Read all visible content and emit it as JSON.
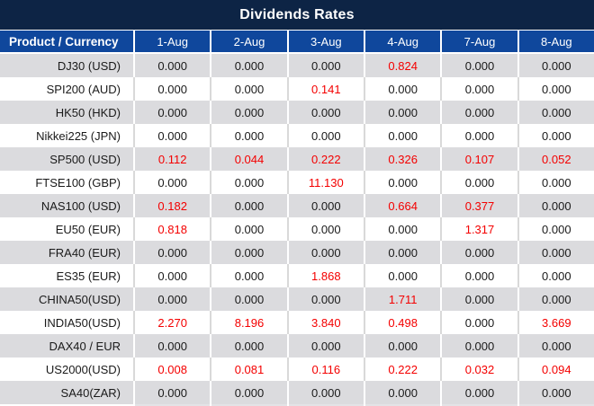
{
  "title": "Dividends Rates",
  "colors": {
    "title_bar": "#0d2445",
    "header_bg": "#0f479c",
    "alt_row_bg": "#dbdbde",
    "nonzero_value": "#f40000",
    "zero_value": "#1a1a1a"
  },
  "table": {
    "columns": [
      "Product / Currency",
      "1-Aug",
      "2-Aug",
      "3-Aug",
      "4-Aug",
      "7-Aug",
      "8-Aug"
    ],
    "rows": [
      {
        "product": "DJ30 (USD)",
        "values": [
          "0.000",
          "0.000",
          "0.000",
          "0.824",
          "0.000",
          "0.000"
        ]
      },
      {
        "product": "SPI200 (AUD)",
        "values": [
          "0.000",
          "0.000",
          "0.141",
          "0.000",
          "0.000",
          "0.000"
        ]
      },
      {
        "product": "HK50 (HKD)",
        "values": [
          "0.000",
          "0.000",
          "0.000",
          "0.000",
          "0.000",
          "0.000"
        ]
      },
      {
        "product": "Nikkei225 (JPN)",
        "values": [
          "0.000",
          "0.000",
          "0.000",
          "0.000",
          "0.000",
          "0.000"
        ]
      },
      {
        "product": "SP500 (USD)",
        "values": [
          "0.112",
          "0.044",
          "0.222",
          "0.326",
          "0.107",
          "0.052"
        ]
      },
      {
        "product": "FTSE100 (GBP)",
        "values": [
          "0.000",
          "0.000",
          "11.130",
          "0.000",
          "0.000",
          "0.000"
        ]
      },
      {
        "product": "NAS100 (USD)",
        "values": [
          "0.182",
          "0.000",
          "0.000",
          "0.664",
          "0.377",
          "0.000"
        ]
      },
      {
        "product": "EU50 (EUR)",
        "values": [
          "0.818",
          "0.000",
          "0.000",
          "0.000",
          "1.317",
          "0.000"
        ]
      },
      {
        "product": "FRA40 (EUR)",
        "values": [
          "0.000",
          "0.000",
          "0.000",
          "0.000",
          "0.000",
          "0.000"
        ]
      },
      {
        "product": "ES35 (EUR)",
        "values": [
          "0.000",
          "0.000",
          "1.868",
          "0.000",
          "0.000",
          "0.000"
        ]
      },
      {
        "product": "CHINA50(USD)",
        "values": [
          "0.000",
          "0.000",
          "0.000",
          "1.711",
          "0.000",
          "0.000"
        ]
      },
      {
        "product": "INDIA50(USD)",
        "values": [
          "2.270",
          "8.196",
          "3.840",
          "0.498",
          "0.000",
          "3.669"
        ]
      },
      {
        "product": "DAX40 / EUR",
        "values": [
          "0.000",
          "0.000",
          "0.000",
          "0.000",
          "0.000",
          "0.000"
        ]
      },
      {
        "product": "US2000(USD)",
        "values": [
          "0.008",
          "0.081",
          "0.116",
          "0.222",
          "0.032",
          "0.094"
        ]
      },
      {
        "product": "SA40(ZAR)",
        "values": [
          "0.000",
          "0.000",
          "0.000",
          "0.000",
          "0.000",
          "0.000"
        ]
      }
    ]
  }
}
